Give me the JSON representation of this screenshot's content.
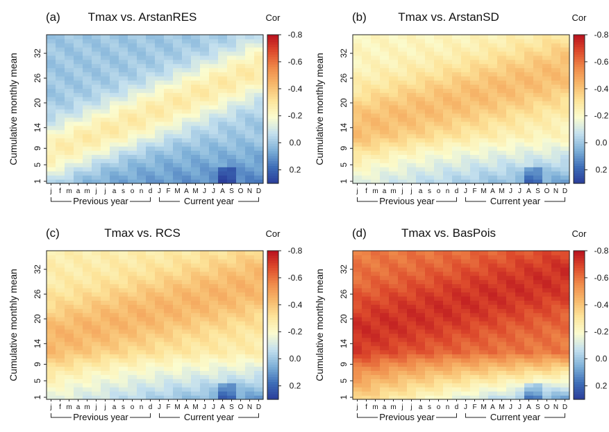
{
  "chart_data": [
    {
      "type": "heatmap",
      "panel_label": "(a)",
      "title": "Tmax vs. ArstanRES",
      "legend_title": "Cor",
      "ylabel": "Cumulative monthly mean",
      "x_ticks": [
        "j",
        "f",
        "m",
        "a",
        "m",
        "j",
        "j",
        "a",
        "s",
        "o",
        "n",
        "d",
        "J",
        "F",
        "M",
        "A",
        "M",
        "J",
        "J",
        "A",
        "S",
        "O",
        "N",
        "D"
      ],
      "x_groups": [
        "Previous year",
        "Current year"
      ],
      "y_ticks": [
        "1",
        "5",
        "9",
        "14",
        "20",
        "26",
        "32"
      ],
      "y_tick_values": [
        1,
        5,
        9,
        14,
        20,
        26,
        32
      ],
      "ylim": [
        1,
        36
      ],
      "colorbar_ticks": [
        "-0.8",
        "-0.6",
        "-0.4",
        "-0.2",
        "0.0",
        "0.2"
      ],
      "colorbar_tick_values": [
        -0.8,
        -0.6,
        -0.4,
        -0.2,
        0.0,
        0.2
      ],
      "zlim": [
        -0.8,
        0.3
      ],
      "approx_pattern": {
        "base": 0.0,
        "band_strength": -0.28,
        "band_start_month": 7,
        "band_start_window": 14,
        "band_slope": 0.9,
        "band_width": 7,
        "low_window_boost": 0.12,
        "summer_dip_months": [
          19,
          20
        ]
      }
    },
    {
      "type": "heatmap",
      "panel_label": "(b)",
      "title": "Tmax vs. ArstanSD",
      "legend_title": "Cor",
      "ylabel": "Cumulative monthly mean",
      "x_ticks": [
        "j",
        "f",
        "m",
        "a",
        "m",
        "j",
        "j",
        "a",
        "s",
        "o",
        "n",
        "d",
        "J",
        "F",
        "M",
        "A",
        "M",
        "J",
        "J",
        "A",
        "S",
        "O",
        "N",
        "D"
      ],
      "x_groups": [
        "Previous year",
        "Current year"
      ],
      "y_ticks": [
        "1",
        "5",
        "9",
        "14",
        "20",
        "26",
        "32"
      ],
      "y_tick_values": [
        1,
        5,
        9,
        14,
        20,
        26,
        32
      ],
      "ylim": [
        1,
        36
      ],
      "colorbar_ticks": [
        "-0.8",
        "-0.6",
        "-0.4",
        "-0.2",
        "0.0",
        "0.2"
      ],
      "colorbar_tick_values": [
        -0.8,
        -0.6,
        -0.4,
        -0.2,
        0.0,
        0.2
      ],
      "zlim": [
        -0.8,
        0.3
      ],
      "approx_pattern": {
        "base": -0.22,
        "band_strength": -0.2,
        "band_start_month": 0,
        "band_start_window": 14,
        "band_slope": 0.6,
        "band_width": 9,
        "low_window_boost": 0.25,
        "summer_dip_months": [
          19,
          20
        ]
      }
    },
    {
      "type": "heatmap",
      "panel_label": "(c)",
      "title": "Tmax vs. RCS",
      "legend_title": "Cor",
      "ylabel": "Cumulative monthly mean",
      "x_ticks": [
        "j",
        "f",
        "m",
        "a",
        "m",
        "j",
        "j",
        "a",
        "s",
        "o",
        "n",
        "d",
        "J",
        "F",
        "M",
        "A",
        "M",
        "J",
        "J",
        "A",
        "S",
        "O",
        "N",
        "D"
      ],
      "x_groups": [
        "Previous year",
        "Current year"
      ],
      "y_ticks": [
        "1",
        "5",
        "9",
        "14",
        "20",
        "26",
        "32"
      ],
      "y_tick_values": [
        1,
        5,
        9,
        14,
        20,
        26,
        32
      ],
      "ylim": [
        1,
        36
      ],
      "colorbar_ticks": [
        "-0.8",
        "-0.6",
        "-0.4",
        "-0.2",
        "0.0",
        "0.2"
      ],
      "colorbar_tick_values": [
        -0.8,
        -0.6,
        -0.4,
        -0.2,
        0.0,
        0.2
      ],
      "zlim": [
        -0.8,
        0.3
      ],
      "approx_pattern": {
        "base": -0.26,
        "band_strength": -0.18,
        "band_start_month": 0,
        "band_start_window": 15,
        "band_slope": 0.6,
        "band_width": 9,
        "low_window_boost": 0.3,
        "summer_dip_months": [
          19,
          20
        ]
      }
    },
    {
      "type": "heatmap",
      "panel_label": "(d)",
      "title": "Tmax vs. BasPois",
      "legend_title": "Cor",
      "ylabel": "Cumulative monthly mean",
      "x_ticks": [
        "j",
        "f",
        "m",
        "a",
        "m",
        "j",
        "j",
        "a",
        "s",
        "o",
        "n",
        "d",
        "J",
        "F",
        "M",
        "A",
        "M",
        "J",
        "J",
        "A",
        "S",
        "O",
        "N",
        "D"
      ],
      "x_groups": [
        "Previous year",
        "Current year"
      ],
      "y_ticks": [
        "1",
        "5",
        "9",
        "14",
        "20",
        "26",
        "32"
      ],
      "y_tick_values": [
        1,
        5,
        9,
        14,
        20,
        26,
        32
      ],
      "ylim": [
        1,
        36
      ],
      "colorbar_ticks": [
        "-0.8",
        "-0.6",
        "-0.4",
        "-0.2",
        "0.0",
        "0.2"
      ],
      "colorbar_tick_values": [
        -0.8,
        -0.6,
        -0.4,
        -0.2,
        0.0,
        0.2
      ],
      "zlim": [
        -0.8,
        0.3
      ],
      "approx_pattern": {
        "base": -0.58,
        "band_strength": -0.15,
        "band_start_month": 2,
        "band_start_window": 18,
        "band_slope": 0.6,
        "band_width": 10,
        "low_window_boost": 0.55,
        "summer_dip_months": [
          19,
          20
        ]
      }
    }
  ],
  "colorscale": [
    "#2a3d9a",
    "#3f6fb8",
    "#7fb1d8",
    "#c4e0ee",
    "#fbfccf",
    "#fde49a",
    "#f7b86b",
    "#ef8a4a",
    "#dd4a2c",
    "#b8101e"
  ]
}
